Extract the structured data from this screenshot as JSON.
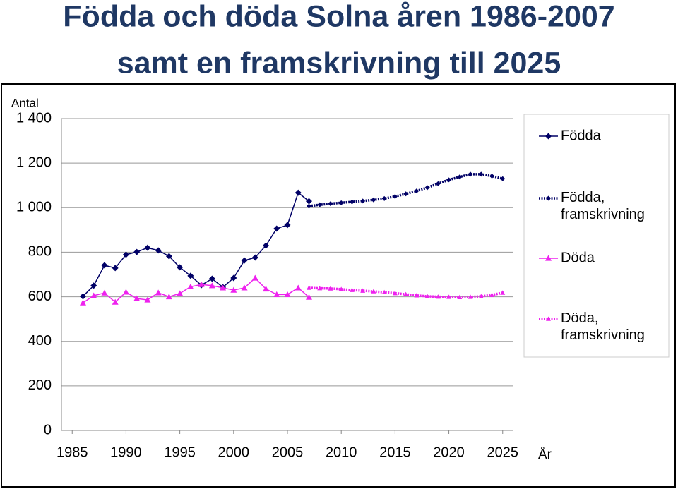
{
  "chart_data": {
    "type": "line",
    "title": [
      "Födda och döda Solna åren 1986-2007",
      "samt en framskrivning till 2025"
    ],
    "y_label": "Antal",
    "x_label": "År",
    "xlim": [
      1984,
      2026
    ],
    "xticks": [
      1985,
      1990,
      1995,
      2000,
      2005,
      2010,
      2015,
      2020,
      2025
    ],
    "ylim": [
      0,
      1400
    ],
    "yticks": [
      0,
      {
        "value": 200,
        "label": "200"
      },
      {
        "value": 400,
        "label": "400"
      },
      {
        "value": 600,
        "label": "600"
      },
      {
        "value": 800,
        "label": "800"
      },
      {
        "value": 1000,
        "label": "1 000"
      },
      {
        "value": 1200,
        "label": "1 200"
      },
      {
        "value": 1400,
        "label": "1 400"
      }
    ],
    "grid": true,
    "legend": "right",
    "series": [
      {
        "name": "Födda",
        "color": "#000066",
        "style": "solid",
        "marker": "diamond",
        "x": [
          1986,
          1987,
          1988,
          1989,
          1990,
          1991,
          1992,
          1993,
          1994,
          1995,
          1996,
          1997,
          1998,
          1999,
          2000,
          2001,
          2002,
          2003,
          2004,
          2005,
          2006,
          2007
        ],
        "values": [
          602,
          650,
          741,
          729,
          789,
          801,
          820,
          808,
          782,
          732,
          694,
          652,
          681,
          643,
          684,
          763,
          776,
          830,
          906,
          922,
          1067,
          1029
        ]
      },
      {
        "name": "Födda, framskrivning",
        "color": "#000066",
        "style": "dotted",
        "marker": "diamond",
        "x": [
          2007,
          2008,
          2009,
          2010,
          2011,
          2012,
          2013,
          2014,
          2015,
          2016,
          2017,
          2018,
          2019,
          2020,
          2021,
          2022,
          2023,
          2024,
          2025
        ],
        "values": [
          1007,
          1013,
          1018,
          1022,
          1026,
          1030,
          1035,
          1041,
          1050,
          1062,
          1075,
          1090,
          1108,
          1125,
          1138,
          1150,
          1150,
          1142,
          1130
        ]
      },
      {
        "name": "Döda",
        "color": "#ee22ee",
        "style": "solid",
        "marker": "triangle",
        "x": [
          1986,
          1987,
          1988,
          1989,
          1990,
          1991,
          1992,
          1993,
          1994,
          1995,
          1996,
          1997,
          1998,
          1999,
          2000,
          2001,
          2002,
          2003,
          2004,
          2005,
          2006,
          2007
        ],
        "values": [
          573,
          605,
          617,
          576,
          621,
          592,
          586,
          618,
          600,
          615,
          645,
          655,
          650,
          640,
          630,
          640,
          684,
          635,
          610,
          610,
          640,
          598
        ]
      },
      {
        "name": "Döda, framskrivning",
        "color": "#ee22ee",
        "style": "dotted",
        "marker": "triangle",
        "x": [
          2007,
          2008,
          2009,
          2010,
          2011,
          2012,
          2013,
          2014,
          2015,
          2016,
          2017,
          2018,
          2019,
          2020,
          2021,
          2022,
          2023,
          2024,
          2025
        ],
        "values": [
          640,
          638,
          637,
          634,
          630,
          627,
          624,
          620,
          616,
          611,
          606,
          602,
          600,
          599,
          598,
          599,
          602,
          608,
          618
        ]
      }
    ]
  }
}
